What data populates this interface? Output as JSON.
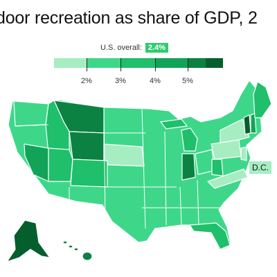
{
  "title": "door recreation as share of GDP, 2",
  "overall": {
    "label": "U.S. overall:",
    "value": "2.4%"
  },
  "legend": {
    "colors": [
      "#a6edc2",
      "#3ed78a",
      "#1fbf6b",
      "#11a458",
      "#0b8242",
      "#055f2d"
    ],
    "ticks": [
      "2%",
      "3%",
      "4%",
      "5%"
    ]
  },
  "dc": {
    "label": "D.C.",
    "color": "#a6edc2"
  },
  "colors": {
    "base": "#3ed78a",
    "light": "#a6edc2",
    "mid": "#1fbf6b",
    "dark": "#11a458",
    "darker": "#0b8242",
    "darkest": "#055f2d",
    "border": "#ffffff"
  }
}
